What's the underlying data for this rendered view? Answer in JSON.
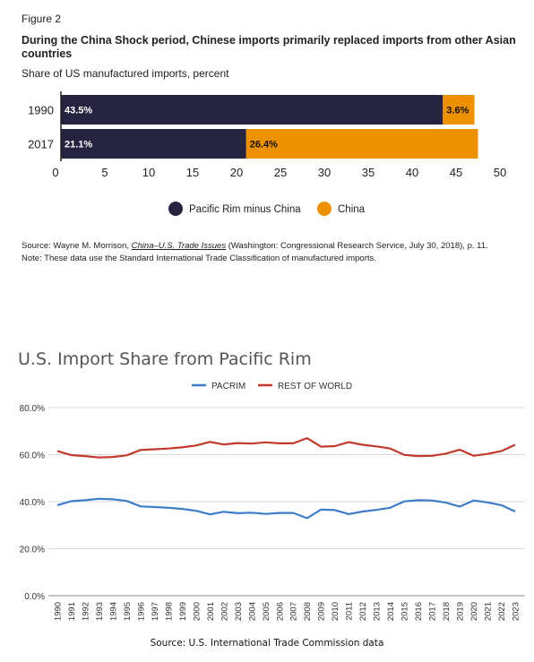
{
  "figure1": {
    "label": "Figure 2",
    "title": "During the China Shock period, Chinese imports primarily replaced imports from other Asian countries",
    "subtitle": "Share of US manufactured imports, percent",
    "source_prefix": "Source: Wayne M. Morrison, ",
    "source_link": "China–U.S. Trade Issues",
    "source_suffix": " (Washington: Congressional Research Service, July 30, 2018), p. 11.",
    "note": "Note: These data use the Standard International Trade Classification of manufactured imports."
  },
  "figure2": {
    "title": "U.S. Import Share from Pacific Rim",
    "source": "Source: U.S. International Trade Commission data"
  },
  "colors": {
    "pacific_rim_minus_china": "#262340",
    "china": "#ee9100",
    "pacrim_line": "#3d7cc9",
    "rest_line": "#c0392b"
  },
  "chart_data": [
    {
      "type": "bar",
      "orientation": "horizontal",
      "stacked": true,
      "categories": [
        "1990",
        "2017"
      ],
      "series": [
        {
          "name": "Pacific Rim minus China",
          "values": [
            43.5,
            21.1
          ],
          "labels": [
            "43.5%",
            "21.1%"
          ]
        },
        {
          "name": "China",
          "values": [
            3.6,
            26.4
          ],
          "labels": [
            "3.6%",
            "26.4%"
          ]
        }
      ],
      "xlim": [
        0,
        50
      ],
      "xticks": [
        "0",
        "5",
        "10",
        "15",
        "20",
        "25",
        "30",
        "35",
        "40",
        "45",
        "50"
      ],
      "legend_position": "bottom"
    },
    {
      "type": "line",
      "title": "U.S. Import Share from Pacific Rim",
      "x": [
        "1990",
        "1991",
        "1992",
        "1993",
        "1994",
        "1995",
        "1996",
        "1997",
        "1998",
        "1999",
        "2000",
        "2001",
        "2002",
        "2003",
        "2004",
        "2005",
        "2006",
        "2007",
        "2008",
        "2009",
        "2010",
        "2011",
        "2012",
        "2013",
        "2014",
        "2015",
        "2016",
        "2017",
        "2018",
        "2019",
        "2020",
        "2021",
        "2022",
        "2023"
      ],
      "series": [
        {
          "name": "PACRIM",
          "values": [
            38.5,
            40.2,
            40.6,
            41.2,
            41.0,
            40.3,
            38.0,
            37.7,
            37.4,
            36.9,
            36.1,
            34.6,
            35.7,
            35.1,
            35.3,
            34.8,
            35.2,
            35.2,
            33.0,
            36.6,
            36.4,
            34.7,
            35.8,
            36.5,
            37.4,
            40.1,
            40.6,
            40.5,
            39.6,
            37.9,
            40.5,
            39.7,
            38.5,
            35.8
          ]
        },
        {
          "name": "REST OF WORLD",
          "values": [
            61.5,
            59.8,
            59.4,
            58.8,
            59.0,
            59.7,
            62.0,
            62.3,
            62.6,
            63.1,
            63.9,
            65.4,
            64.3,
            64.9,
            64.7,
            65.2,
            64.8,
            64.8,
            67.0,
            63.4,
            63.6,
            65.3,
            64.2,
            63.5,
            62.6,
            59.9,
            59.4,
            59.5,
            60.4,
            62.1,
            59.5,
            60.3,
            61.5,
            64.2
          ]
        }
      ],
      "ylim": [
        0,
        80
      ],
      "yticks": [
        "0.0%",
        "20.0%",
        "40.0%",
        "60.0%",
        "80.0%"
      ],
      "grid": "horizontal",
      "legend_position": "top"
    }
  ]
}
